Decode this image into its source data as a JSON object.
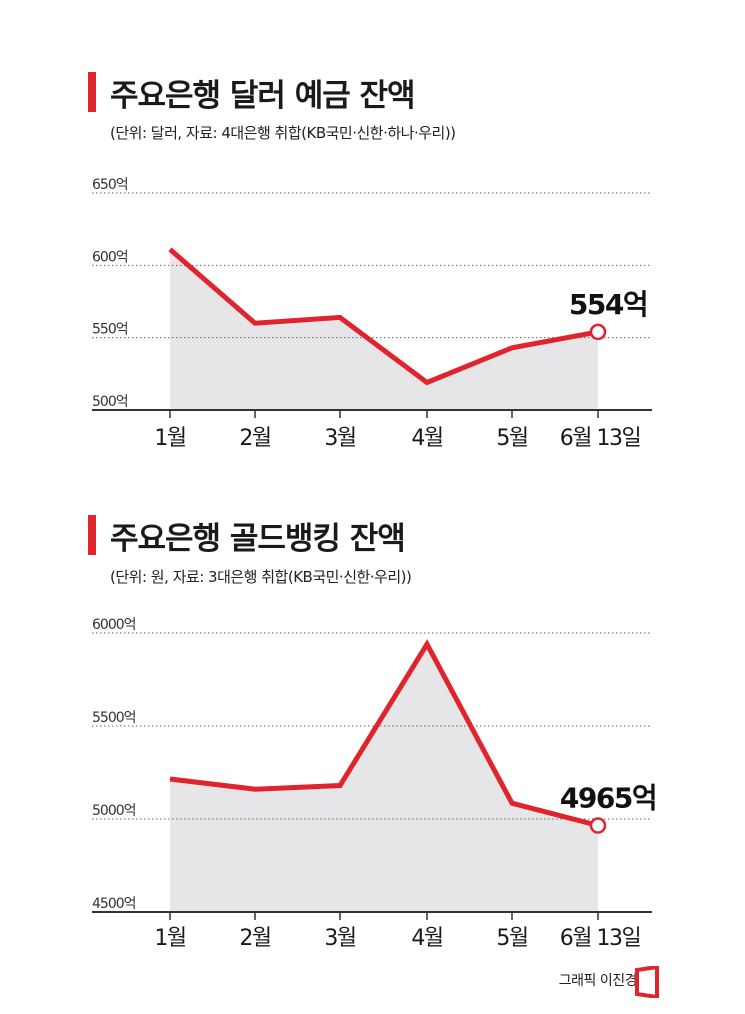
{
  "charts": [
    {
      "title": "주요은행 달러 예금 잔액",
      "subtitle": "(단위: 달러, 자료: 4대은행 취합(KB국민·신한·하나·우리))"
    },
    {
      "title": "주요은행 골드뱅킹 잔액",
      "subtitle": "(단위: 원, 자료: 3대은행 취합(KB국민·신한·우리))"
    }
  ],
  "credit": "그래픽 이진경",
  "colors": {
    "line": "#e0242e",
    "area": "#e6e6e9",
    "grid": "#666666",
    "axis": "#333333"
  },
  "chart_data": [
    {
      "type": "area",
      "title": "주요은행 달러 예금 잔액",
      "categories": [
        "1월",
        "2월",
        "3월",
        "4월",
        "5월",
        "6월 13일"
      ],
      "values": [
        611,
        560,
        564,
        519,
        543,
        554
      ],
      "ytick_labels": [
        "500억",
        "550억",
        "600억",
        "650억"
      ],
      "ylim": [
        500,
        650
      ],
      "yticks": [
        500,
        550,
        600,
        650
      ],
      "end_label": "554억",
      "grid": true
    },
    {
      "type": "area",
      "title": "주요은행 골드뱅킹 잔액",
      "categories": [
        "1월",
        "2월",
        "3월",
        "4월",
        "5월",
        "6월 13일"
      ],
      "values": [
        5215,
        5160,
        5180,
        5940,
        5085,
        4965
      ],
      "ytick_labels": [
        "4500억",
        "5000억",
        "5500억",
        "6000억"
      ],
      "ylim": [
        4500,
        6000
      ],
      "yticks": [
        4500,
        5000,
        5500,
        6000
      ],
      "end_label": "4965억",
      "grid": true
    }
  ]
}
